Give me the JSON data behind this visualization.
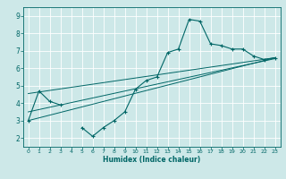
{
  "title": "",
  "xlabel": "Humidex (Indice chaleur)",
  "ylabel": "",
  "background_color": "#cde8e8",
  "grid_color": "#ffffff",
  "line_color": "#006666",
  "xlim": [
    -0.5,
    23.5
  ],
  "ylim": [
    1.5,
    9.5
  ],
  "yticks": [
    2,
    3,
    4,
    5,
    6,
    7,
    8,
    9
  ],
  "xticks": [
    0,
    1,
    2,
    3,
    4,
    5,
    6,
    7,
    8,
    9,
    10,
    11,
    12,
    13,
    14,
    15,
    16,
    17,
    18,
    19,
    20,
    21,
    22,
    23
  ],
  "main_series": {
    "x": [
      0,
      1,
      2,
      3,
      5,
      6,
      7,
      8,
      9,
      10,
      11,
      12,
      13,
      14,
      15,
      16,
      17,
      18,
      19,
      20,
      21,
      22,
      23
    ],
    "y": [
      3.0,
      4.7,
      4.1,
      3.9,
      2.6,
      2.1,
      2.6,
      3.0,
      3.5,
      4.8,
      5.3,
      5.5,
      6.9,
      7.1,
      8.8,
      8.7,
      7.4,
      7.3,
      7.1,
      7.1,
      6.7,
      6.5,
      6.6
    ]
  },
  "trend_lines": [
    {
      "x": [
        0,
        23
      ],
      "y": [
        3.0,
        6.6
      ]
    },
    {
      "x": [
        0,
        23
      ],
      "y": [
        3.5,
        6.55
      ]
    },
    {
      "x": [
        0,
        23
      ],
      "y": [
        4.55,
        6.6
      ]
    }
  ]
}
